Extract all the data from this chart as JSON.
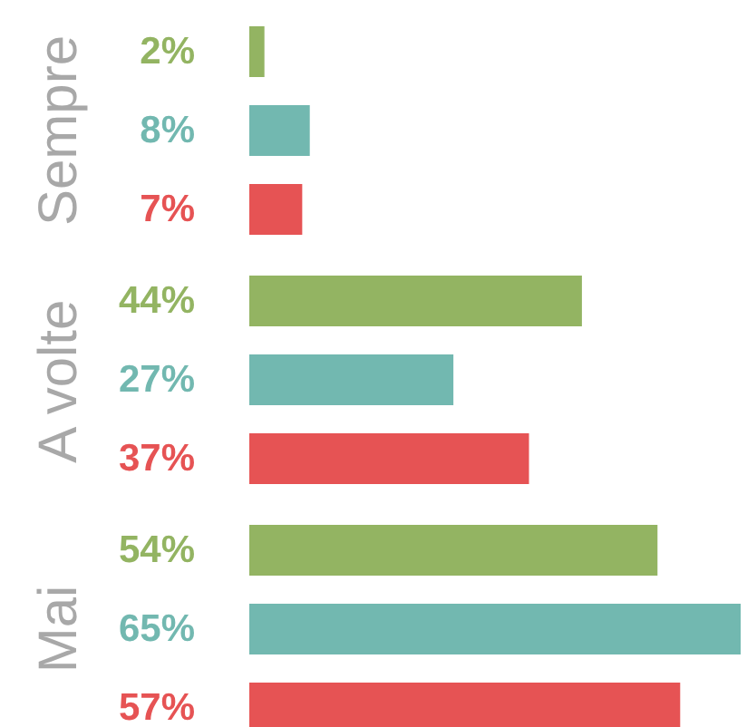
{
  "chart_data": {
    "type": "bar",
    "orientation": "horizontal",
    "categories": [
      "Sempre",
      "A volte",
      "Mai"
    ],
    "series": [
      {
        "color": "#93b462",
        "values": [
          2,
          44,
          54
        ],
        "value_labels": [
          "2%",
          "44%",
          "54%"
        ]
      },
      {
        "color": "#72b8b0",
        "values": [
          8,
          27,
          65
        ],
        "value_labels": [
          "8%",
          "27%",
          "65%"
        ]
      },
      {
        "color": "#e65354",
        "values": [
          7,
          37,
          57
        ],
        "value_labels": [
          "7%",
          "37%",
          "57%"
        ]
      }
    ]
  }
}
